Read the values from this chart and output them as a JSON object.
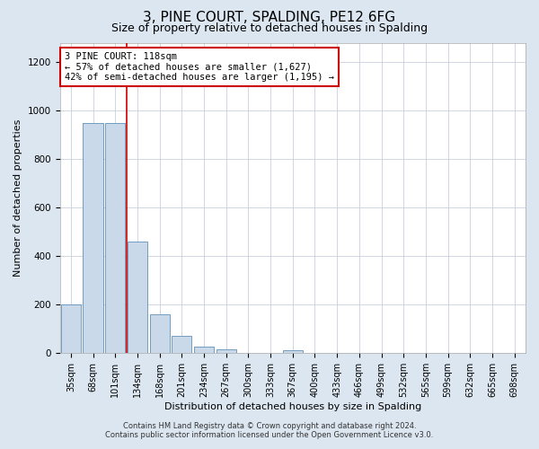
{
  "title": "3, PINE COURT, SPALDING, PE12 6FG",
  "subtitle": "Size of property relative to detached houses in Spalding",
  "xlabel": "Distribution of detached houses by size in Spalding",
  "ylabel": "Number of detached properties",
  "categories": [
    "35sqm",
    "68sqm",
    "101sqm",
    "134sqm",
    "168sqm",
    "201sqm",
    "234sqm",
    "267sqm",
    "300sqm",
    "333sqm",
    "367sqm",
    "400sqm",
    "433sqm",
    "466sqm",
    "499sqm",
    "532sqm",
    "565sqm",
    "599sqm",
    "632sqm",
    "665sqm",
    "698sqm"
  ],
  "values": [
    200,
    950,
    950,
    460,
    160,
    70,
    25,
    15,
    0,
    0,
    10,
    0,
    0,
    0,
    0,
    0,
    0,
    0,
    0,
    0,
    0
  ],
  "bar_color": "#c9d9ea",
  "bar_edge_color": "#6090b8",
  "vline_x_index": 2.5,
  "vline_color": "#cc0000",
  "annotation_text": "3 PINE COURT: 118sqm\n← 57% of detached houses are smaller (1,627)\n42% of semi-detached houses are larger (1,195) →",
  "annotation_box_color": "#ffffff",
  "annotation_box_edge_color": "#cc0000",
  "ylim": [
    0,
    1280
  ],
  "yticks": [
    0,
    200,
    400,
    600,
    800,
    1000,
    1200
  ],
  "footer_line1": "Contains HM Land Registry data © Crown copyright and database right 2024.",
  "footer_line2": "Contains public sector information licensed under the Open Government Licence v3.0.",
  "background_color": "#dce6f0",
  "plot_bg_color": "#ffffff",
  "title_fontsize": 11,
  "subtitle_fontsize": 9,
  "axis_label_fontsize": 8,
  "tick_fontsize": 7,
  "footer_fontsize": 6,
  "grid_color": "#c8d0dc",
  "annotation_fontsize": 7.5
}
